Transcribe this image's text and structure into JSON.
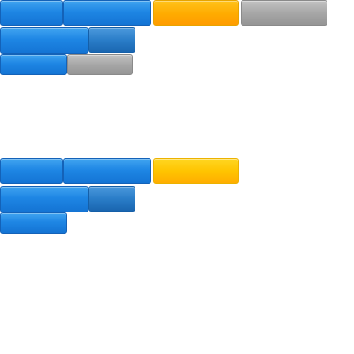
{
  "groups": [
    {
      "name": "top-button-group",
      "buttons": [
        {
          "label": "",
          "style": "blue"
        },
        {
          "label": "",
          "style": "blue"
        },
        {
          "label": "",
          "style": "orange"
        },
        {
          "label": "",
          "style": "gray"
        },
        {
          "label": "",
          "style": "blue"
        },
        {
          "label": "",
          "style": "blue-dark"
        },
        {
          "label": "",
          "style": "blue"
        },
        {
          "label": "",
          "style": "gray"
        }
      ]
    },
    {
      "name": "bottom-button-group",
      "buttons": [
        {
          "label": "",
          "style": "blue"
        },
        {
          "label": "",
          "style": "blue"
        },
        {
          "label": "",
          "style": "yellow"
        },
        {
          "label": "",
          "style": "blue"
        },
        {
          "label": "",
          "style": "blue-dark"
        },
        {
          "label": "",
          "style": "blue"
        }
      ]
    }
  ]
}
